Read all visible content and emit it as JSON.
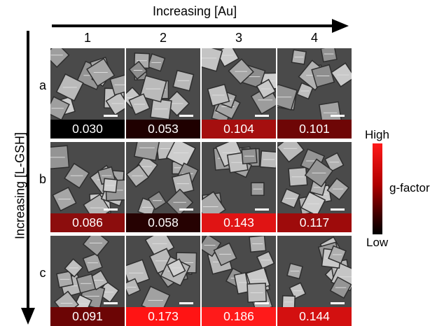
{
  "x_axis_title": "Increasing [Au]",
  "y_axis_title": "Increasing [L-GSH]",
  "columns": [
    "1",
    "2",
    "3",
    "4"
  ],
  "rows": [
    "a",
    "b",
    "c"
  ],
  "cells": [
    [
      {
        "g": "0.030",
        "color": "#000000"
      },
      {
        "g": "0.053",
        "color": "#1f0000"
      },
      {
        "g": "0.104",
        "color": "#a50f0f"
      },
      {
        "g": "0.101",
        "color": "#6e0606"
      }
    ],
    [
      {
        "g": "0.086",
        "color": "#8c0d0d"
      },
      {
        "g": "0.058",
        "color": "#260202"
      },
      {
        "g": "0.143",
        "color": "#e01414"
      },
      {
        "g": "0.117",
        "color": "#9e0b0b"
      }
    ],
    [
      {
        "g": "0.091",
        "color": "#6c0505"
      },
      {
        "g": "0.173",
        "color": "#ff1414"
      },
      {
        "g": "0.186",
        "color": "#ff1a1a"
      },
      {
        "g": "0.144",
        "color": "#d31010"
      }
    ]
  ],
  "colorbar": {
    "high_label": "High",
    "low_label": "Low",
    "title": "g-factor"
  }
}
